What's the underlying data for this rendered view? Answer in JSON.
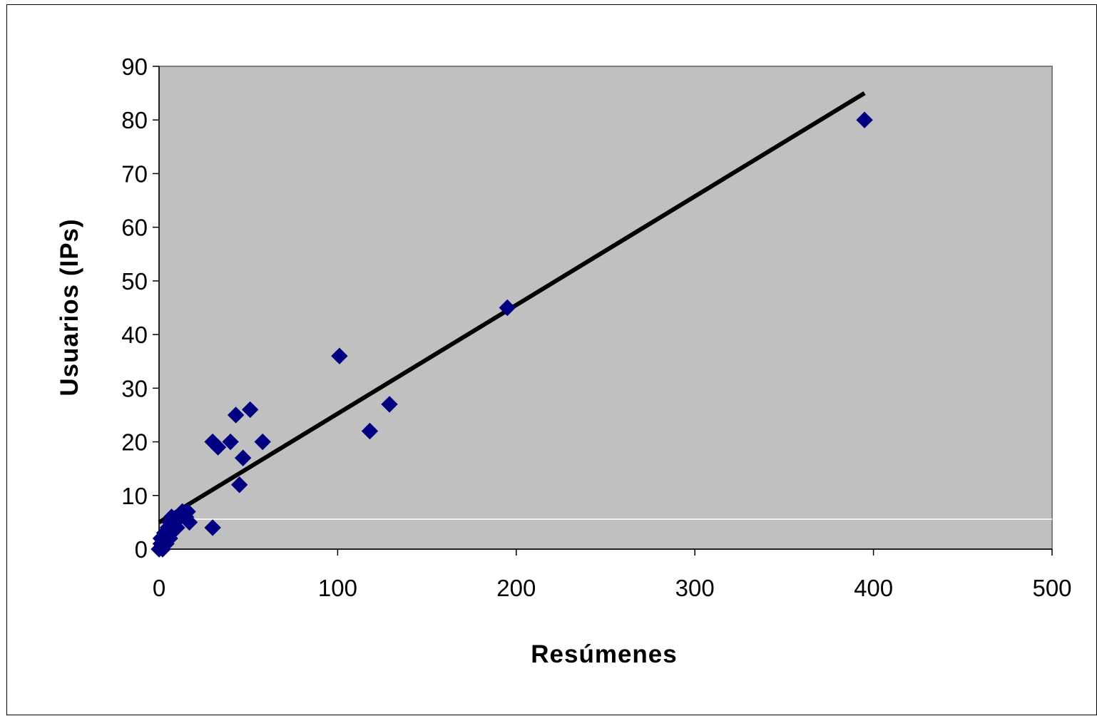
{
  "chart_data": {
    "type": "scatter",
    "title": "",
    "xlabel": "Resúmenes",
    "ylabel": "Usuarios (IPs)",
    "xlim": [
      0,
      500
    ],
    "ylim": [
      0,
      90
    ],
    "x_ticks": [
      "0",
      "100",
      "200",
      "300",
      "400",
      "500"
    ],
    "y_ticks": [
      "0",
      "10",
      "20",
      "30",
      "40",
      "50",
      "60",
      "70",
      "80",
      "90"
    ],
    "grid": false,
    "legend": "none",
    "colors": {
      "plot_area": "#c0c0c0",
      "marker": "#000080",
      "trendline": "#000000"
    },
    "series": [
      {
        "marker": "diamond",
        "points": [
          {
            "x": 0,
            "y": 0
          },
          {
            "x": 1,
            "y": 1
          },
          {
            "x": 1,
            "y": 2
          },
          {
            "x": 2,
            "y": 0
          },
          {
            "x": 2,
            "y": 1
          },
          {
            "x": 3,
            "y": 2
          },
          {
            "x": 3,
            "y": 3
          },
          {
            "x": 4,
            "y": 1
          },
          {
            "x": 4,
            "y": 2
          },
          {
            "x": 5,
            "y": 3
          },
          {
            "x": 5,
            "y": 4
          },
          {
            "x": 6,
            "y": 2
          },
          {
            "x": 6,
            "y": 5
          },
          {
            "x": 7,
            "y": 3
          },
          {
            "x": 7,
            "y": 6
          },
          {
            "x": 8,
            "y": 4
          },
          {
            "x": 9,
            "y": 5
          },
          {
            "x": 10,
            "y": 4
          },
          {
            "x": 12,
            "y": 6
          },
          {
            "x": 13,
            "y": 7
          },
          {
            "x": 15,
            "y": 6
          },
          {
            "x": 16,
            "y": 7
          },
          {
            "x": 17,
            "y": 5
          },
          {
            "x": 30,
            "y": 20
          },
          {
            "x": 30,
            "y": 4
          },
          {
            "x": 33,
            "y": 19
          },
          {
            "x": 40,
            "y": 20
          },
          {
            "x": 43,
            "y": 25
          },
          {
            "x": 45,
            "y": 12
          },
          {
            "x": 47,
            "y": 17
          },
          {
            "x": 51,
            "y": 26
          },
          {
            "x": 58,
            "y": 20
          },
          {
            "x": 101,
            "y": 36
          },
          {
            "x": 118,
            "y": 22
          },
          {
            "x": 129,
            "y": 27
          },
          {
            "x": 195,
            "y": 45
          },
          {
            "x": 395,
            "y": 80
          }
        ]
      }
    ],
    "trendline": {
      "type": "linear",
      "x": [
        0,
        395
      ],
      "y": [
        5,
        85
      ]
    }
  }
}
